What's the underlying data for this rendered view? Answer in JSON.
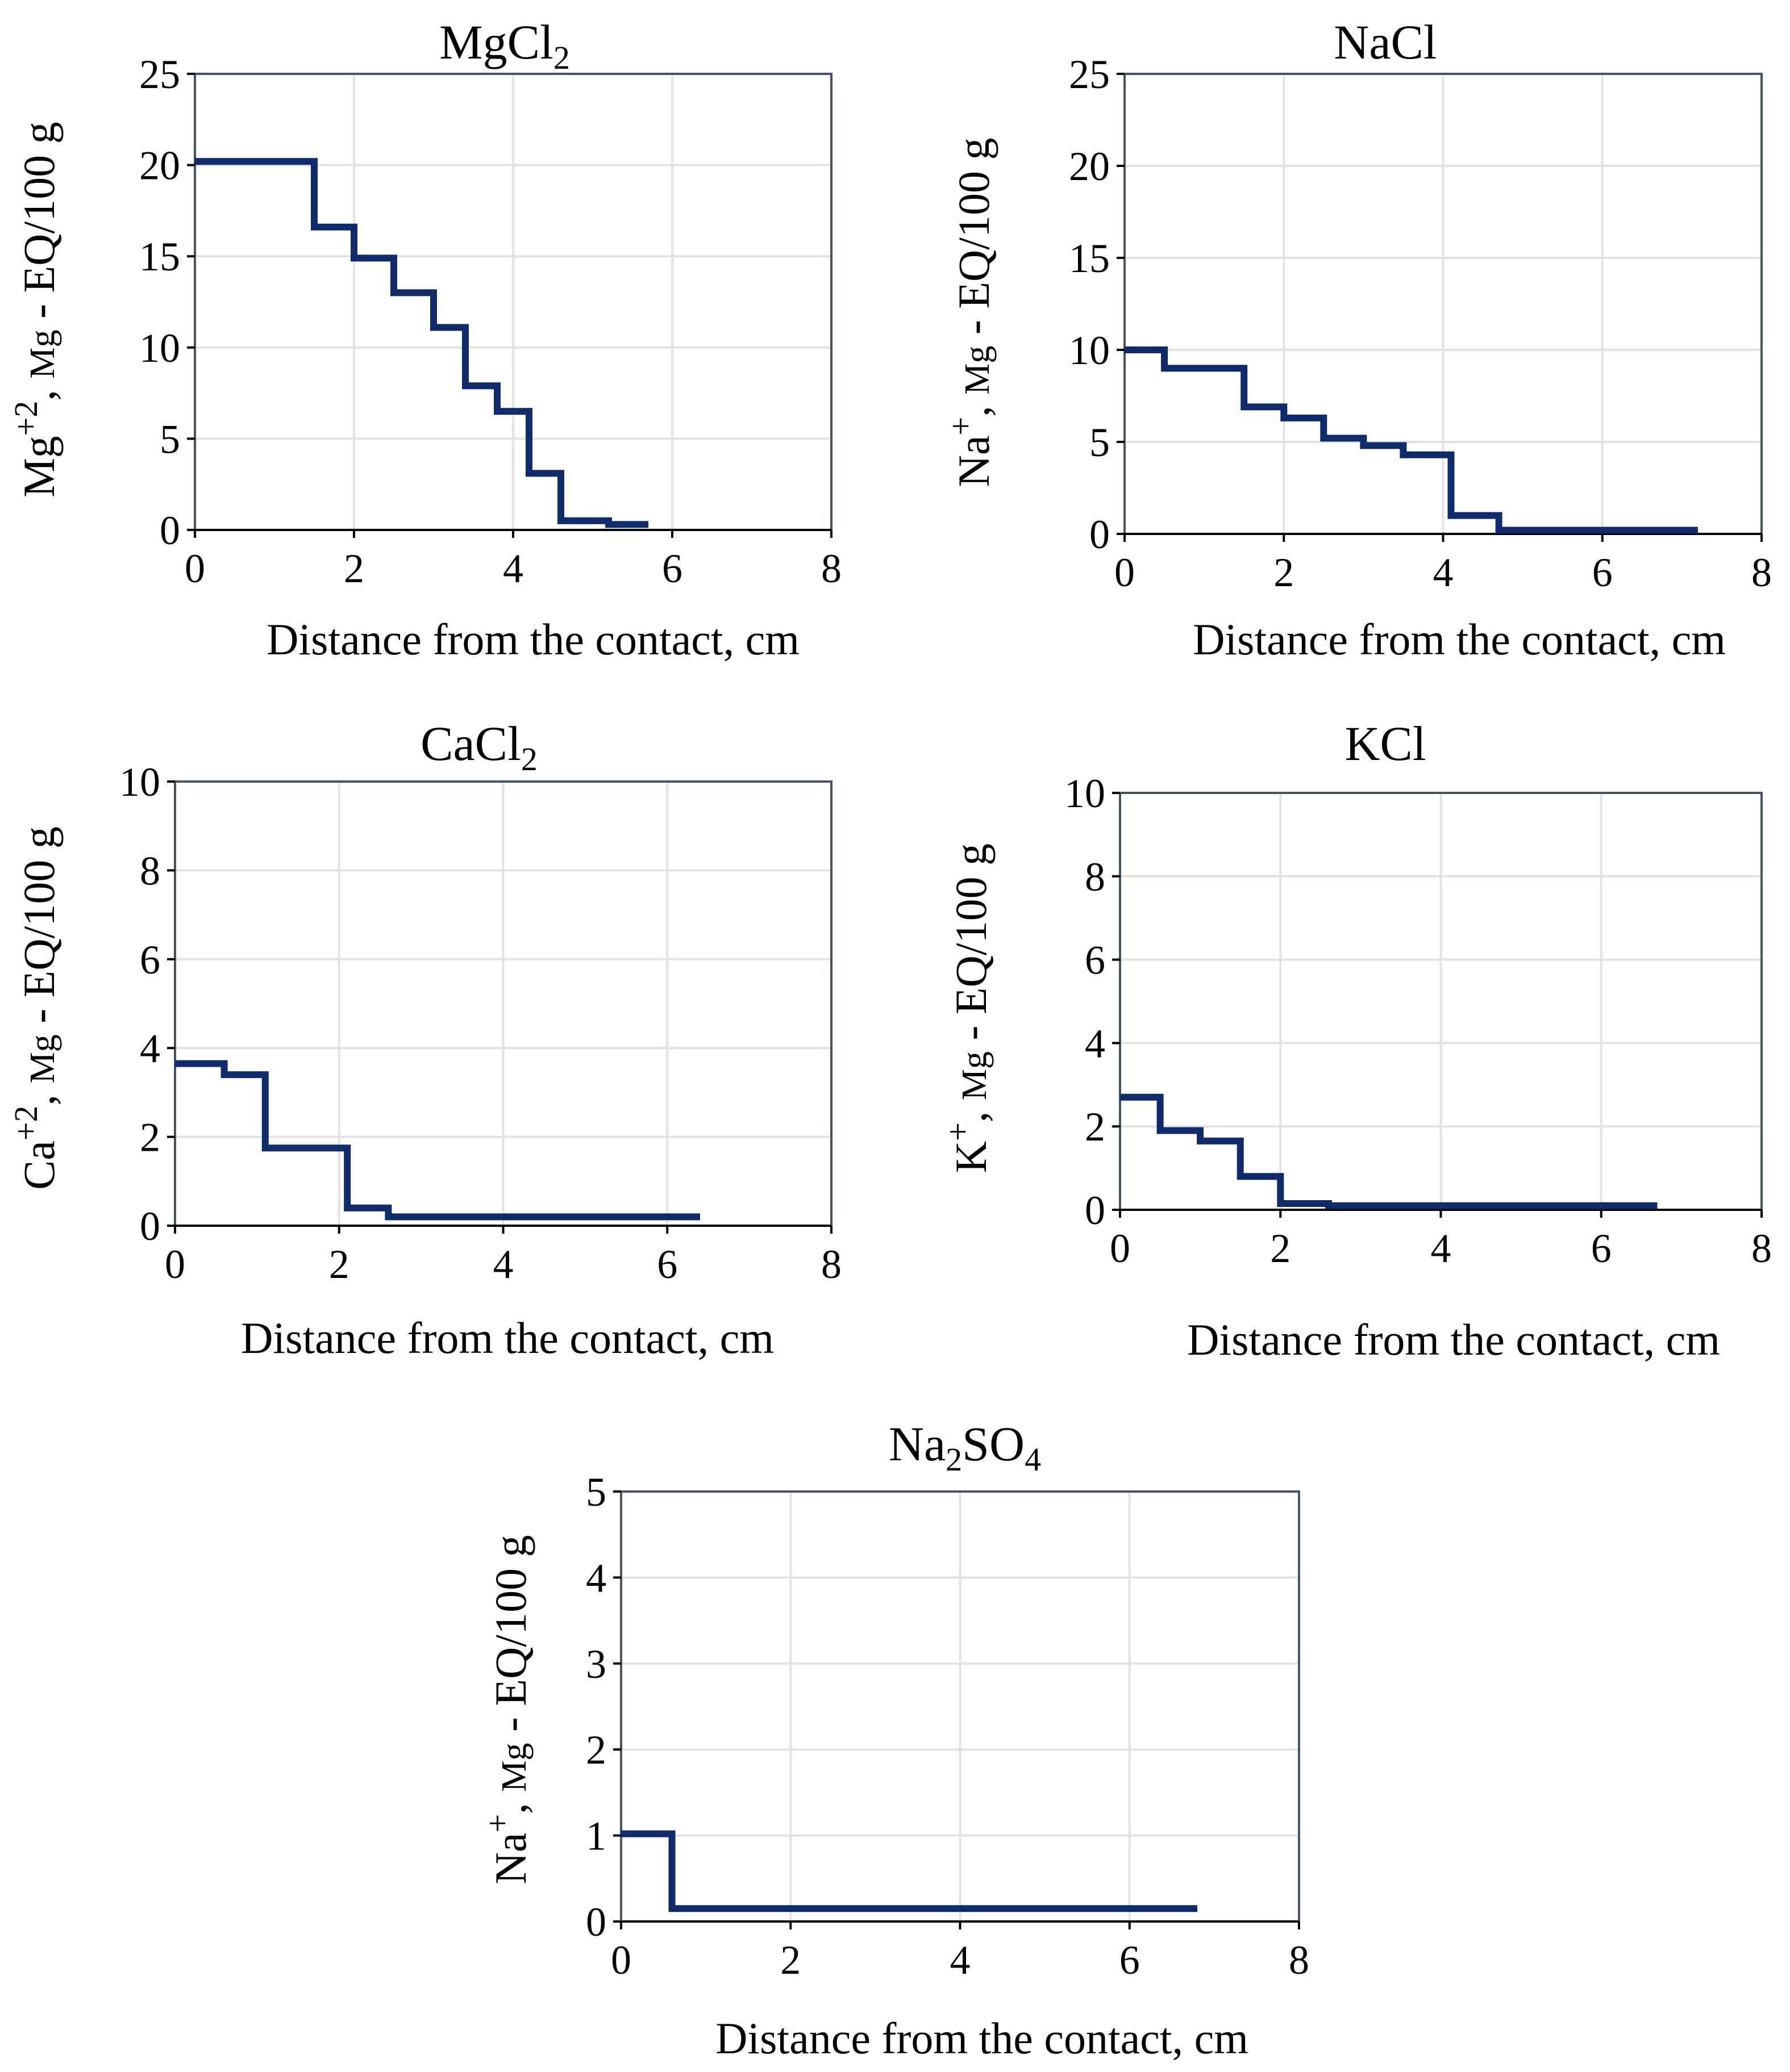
{
  "charts": [
    {
      "id": "mgcl2",
      "title": {
        "base": "MgCl",
        "sub": "2"
      },
      "ylabel": {
        "ion": "Mg",
        "sup": "+2",
        "rest": ", ",
        "unit_small": "Mg",
        "tail": " - EQ/100 g"
      },
      "xlabel": "Distance from the contact, cm"
    },
    {
      "id": "nacl",
      "title": {
        "base": "NaCl"
      },
      "ylabel": {
        "ion": "Na",
        "sup": "+",
        "rest": ", ",
        "unit_small": "Mg",
        "tail": " - EQ/100 g"
      },
      "xlabel": "Distance from the contact, cm"
    },
    {
      "id": "cacl2",
      "title": {
        "base": "CaCl",
        "sub": "2"
      },
      "ylabel": {
        "ion": "Ca",
        "sup": "+2",
        "rest": ", ",
        "unit_small": "Mg",
        "tail": " - EQ/100 g"
      },
      "xlabel": "Distance from the contact, cm"
    },
    {
      "id": "kcl",
      "title": {
        "base": "KCl"
      },
      "ylabel": {
        "ion": "K",
        "sup": "+",
        "rest": ", ",
        "unit_small": "Mg",
        "tail": " - EQ/100 g"
      },
      "xlabel": "Distance from the contact, cm"
    },
    {
      "id": "na2so4",
      "title": {
        "a": "Na",
        "sub1": "2",
        "b": "SO",
        "sub2": "4"
      },
      "ylabel": {
        "ion": "Na",
        "sup": "+",
        "rest": ", ",
        "unit_small": "Mg",
        "tail": " - EQ/100 g"
      },
      "xlabel": "Distance from the contact, cm"
    }
  ],
  "chart_data": [
    {
      "type": "line",
      "step": true,
      "title": "MgCl2",
      "xlabel": "Distance from the contact, cm",
      "ylabel": "Mg+2, Mg - EQ/100 g",
      "xlim": [
        0,
        8
      ],
      "ylim": [
        0,
        25
      ],
      "xticks": [
        0,
        2,
        4,
        6,
        8
      ],
      "yticks": [
        0,
        5,
        10,
        15,
        20,
        25
      ],
      "x": [
        0,
        1.5,
        1.5,
        2,
        2,
        2.5,
        2.5,
        3,
        3,
        3.4,
        3.4,
        3.8,
        3.8,
        4.2,
        4.2,
        4.6,
        4.6,
        5.2,
        5.2,
        5.7
      ],
      "y": [
        20.2,
        20.2,
        16.6,
        16.6,
        14.9,
        14.9,
        13.0,
        13.0,
        11.1,
        11.1,
        7.9,
        7.9,
        6.5,
        6.5,
        3.1,
        3.1,
        0.5,
        0.5,
        0.3,
        0.3
      ]
    },
    {
      "type": "line",
      "step": true,
      "title": "NaCl",
      "xlabel": "Distance from the contact, cm",
      "ylabel": "Na+, Mg - EQ/100 g",
      "xlim": [
        0,
        8
      ],
      "ylim": [
        0,
        25
      ],
      "xticks": [
        0,
        2,
        4,
        6,
        8
      ],
      "yticks": [
        0,
        5,
        10,
        15,
        20,
        25
      ],
      "x": [
        0,
        0.5,
        0.5,
        1.5,
        1.5,
        2,
        2,
        2.5,
        2.5,
        3,
        3,
        3.5,
        3.5,
        4.1,
        4.1,
        4.7,
        4.7,
        7.2
      ],
      "y": [
        10.0,
        10.0,
        9.0,
        9.0,
        6.9,
        6.9,
        6.3,
        6.3,
        5.2,
        5.2,
        4.8,
        4.8,
        4.3,
        4.3,
        1.0,
        1.0,
        0.2,
        0.2
      ]
    },
    {
      "type": "line",
      "step": true,
      "title": "CaCl2",
      "xlabel": "Distance from the contact, cm",
      "ylabel": "Ca+2, Mg - EQ/100 g",
      "xlim": [
        0,
        8
      ],
      "ylim": [
        0,
        10
      ],
      "xticks": [
        0,
        2,
        4,
        6,
        8
      ],
      "yticks": [
        0,
        2,
        4,
        6,
        8,
        10
      ],
      "x": [
        0,
        0.6,
        0.6,
        1.1,
        1.1,
        2.1,
        2.1,
        2.6,
        2.6,
        6.4
      ],
      "y": [
        3.65,
        3.65,
        3.4,
        3.4,
        1.75,
        1.75,
        0.4,
        0.4,
        0.2,
        0.2
      ]
    },
    {
      "type": "line",
      "step": true,
      "title": "KCl",
      "xlabel": "Distance from the contact, cm",
      "ylabel": "K+, Mg - EQ/100 g",
      "xlim": [
        0,
        8
      ],
      "ylim": [
        0,
        10
      ],
      "xticks": [
        0,
        2,
        4,
        6,
        8
      ],
      "yticks": [
        0,
        2,
        4,
        6,
        8,
        10
      ],
      "x": [
        0,
        0.5,
        0.5,
        1,
        1,
        1.5,
        1.5,
        2,
        2,
        2.6,
        2.6,
        6.7
      ],
      "y": [
        2.7,
        2.7,
        1.9,
        1.9,
        1.65,
        1.65,
        0.8,
        0.8,
        0.15,
        0.15,
        0.1,
        0.1
      ]
    },
    {
      "type": "line",
      "step": true,
      "title": "Na2SO4",
      "xlabel": "Distance from the contact, cm",
      "ylabel": "Na+, Mg - EQ/100 g",
      "xlim": [
        0,
        8
      ],
      "ylim": [
        0,
        5
      ],
      "xticks": [
        0,
        2,
        4,
        6,
        8
      ],
      "yticks": [
        0,
        1,
        2,
        3,
        4,
        5
      ],
      "x": [
        0,
        0.6,
        0.6,
        6.8
      ],
      "y": [
        1.02,
        1.02,
        0.15,
        0.15
      ]
    }
  ],
  "colors": {
    "series": "#0f2b6b",
    "grid": "#e2e2e2",
    "frame": "#44546a",
    "axis": "#000000"
  }
}
